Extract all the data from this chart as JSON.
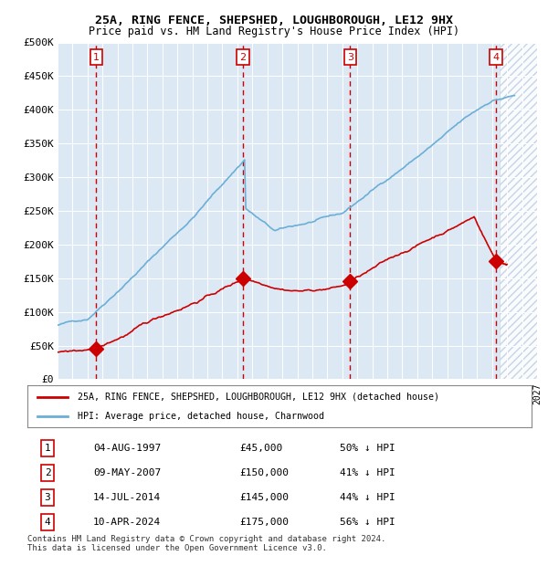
{
  "title1": "25A, RING FENCE, SHEPSHED, LOUGHBOROUGH, LE12 9HX",
  "title2": "Price paid vs. HM Land Registry's House Price Index (HPI)",
  "xlabel": "",
  "ylabel_ticks": [
    "£0",
    "£50K",
    "£100K",
    "£150K",
    "£200K",
    "£250K",
    "£300K",
    "£350K",
    "£400K",
    "£450K",
    "£500K"
  ],
  "ytick_values": [
    0,
    50000,
    100000,
    150000,
    200000,
    250000,
    300000,
    350000,
    400000,
    450000,
    500000
  ],
  "xmin": 1995.0,
  "xmax": 2027.0,
  "ymin": 0,
  "ymax": 500000,
  "hpi_color": "#6baed6",
  "price_color": "#cc0000",
  "sale_marker_color": "#cc0000",
  "sale_marker_edge": "#cc0000",
  "dashed_line_color": "#cc0000",
  "background_color": "#dce9f5",
  "future_hatch_color": "#b0c4de",
  "sales": [
    {
      "num": 1,
      "year": 1997.59,
      "price": 45000,
      "label": "1",
      "date": "04-AUG-1997",
      "price_str": "£45,000",
      "pct": "50%"
    },
    {
      "num": 2,
      "year": 2007.35,
      "price": 150000,
      "label": "2",
      "date": "09-MAY-2007",
      "price_str": "£150,000",
      "pct": "41%"
    },
    {
      "num": 3,
      "year": 2014.53,
      "price": 145000,
      "label": "3",
      "date": "14-JUL-2014",
      "price_str": "£145,000",
      "pct": "44%"
    },
    {
      "num": 4,
      "year": 2024.27,
      "price": 175000,
      "label": "4",
      "date": "10-APR-2024",
      "price_str": "£175,000",
      "pct": "56%"
    }
  ],
  "legend_entries": [
    "25A, RING FENCE, SHEPSHED, LOUGHBOROUGH, LE12 9HX (detached house)",
    "HPI: Average price, detached house, Charnwood"
  ],
  "footer": "Contains HM Land Registry data © Crown copyright and database right 2024.\nThis data is licensed under the Open Government Licence v3.0.",
  "table_rows": [
    [
      "1",
      "04-AUG-1997",
      "£45,000",
      "50% ↓ HPI"
    ],
    [
      "2",
      "09-MAY-2007",
      "£150,000",
      "41% ↓ HPI"
    ],
    [
      "3",
      "14-JUL-2014",
      "£145,000",
      "44% ↓ HPI"
    ],
    [
      "4",
      "10-APR-2024",
      "£175,000",
      "56% ↓ HPI"
    ]
  ]
}
